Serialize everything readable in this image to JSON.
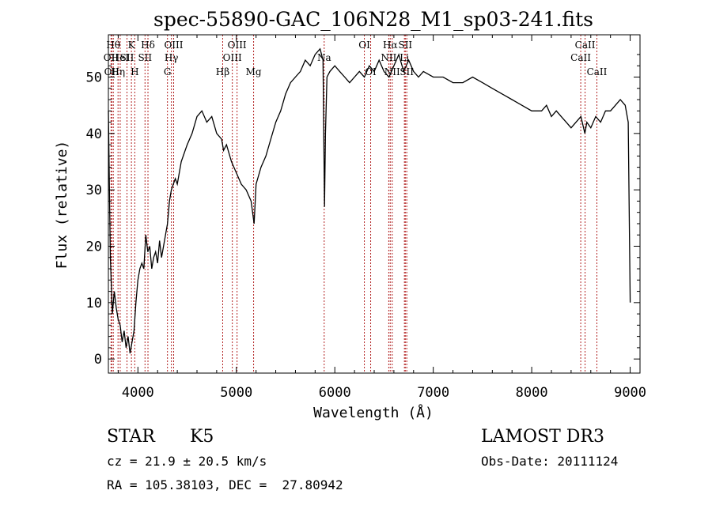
{
  "chart_data": {
    "type": "line",
    "title": "spec-55890-GAC_106N28_M1_sp03-241.fits",
    "xlabel": "Wavelength (Å)",
    "ylabel": "Flux (relative)",
    "xlim": [
      3700,
      9100
    ],
    "ylim": [
      -2.5,
      57.5
    ],
    "xticks": [
      4000,
      5000,
      6000,
      7000,
      8000,
      9000
    ],
    "yticks": [
      0,
      10,
      20,
      30,
      40,
      50
    ],
    "series": [
      {
        "name": "spectrum",
        "x": [
          3700,
          3720,
          3740,
          3760,
          3780,
          3800,
          3820,
          3840,
          3860,
          3880,
          3900,
          3920,
          3940,
          3960,
          3980,
          4000,
          4020,
          4040,
          4060,
          4080,
          4100,
          4120,
          4140,
          4160,
          4180,
          4200,
          4220,
          4240,
          4260,
          4280,
          4300,
          4320,
          4340,
          4360,
          4380,
          4400,
          4420,
          4440,
          4460,
          4480,
          4500,
          4550,
          4600,
          4650,
          4700,
          4750,
          4800,
          4850,
          4870,
          4900,
          4950,
          5000,
          5050,
          5100,
          5150,
          5180,
          5200,
          5250,
          5300,
          5350,
          5400,
          5450,
          5500,
          5550,
          5600,
          5650,
          5700,
          5750,
          5800,
          5850,
          5880,
          5895,
          5905,
          5920,
          5950,
          6000,
          6050,
          6100,
          6150,
          6200,
          6250,
          6300,
          6350,
          6400,
          6450,
          6500,
          6550,
          6600,
          6650,
          6700,
          6750,
          6800,
          6850,
          6900,
          7000,
          7100,
          7200,
          7300,
          7400,
          7500,
          7600,
          7700,
          7800,
          7900,
          8000,
          8100,
          8150,
          8200,
          8250,
          8300,
          8350,
          8400,
          8450,
          8500,
          8540,
          8560,
          8600,
          8650,
          8700,
          8750,
          8800,
          8850,
          8900,
          8950,
          8980,
          9000
        ],
        "y": [
          44,
          18,
          8,
          12,
          9,
          7,
          6,
          3,
          5,
          2,
          4,
          1,
          3,
          5,
          10,
          14,
          16,
          17,
          16,
          22,
          19,
          20,
          16,
          18,
          19,
          17,
          21,
          18,
          20,
          22,
          24,
          28,
          30,
          31,
          32,
          31,
          33,
          35,
          36,
          37,
          38,
          40,
          43,
          44,
          42,
          43,
          40,
          39,
          37,
          38,
          35,
          33,
          31,
          30,
          28,
          24,
          31,
          34,
          36,
          39,
          42,
          44,
          47,
          49,
          50,
          51,
          53,
          52,
          54,
          55,
          53,
          27,
          40,
          50,
          51,
          52,
          51,
          50,
          49,
          50,
          51,
          50,
          52,
          51,
          53,
          51,
          50,
          52,
          54,
          51,
          53,
          51,
          50,
          51,
          50,
          50,
          49,
          49,
          50,
          49,
          48,
          47,
          46,
          45,
          44,
          44,
          45,
          43,
          44,
          43,
          42,
          41,
          42,
          43,
          40,
          42,
          41,
          43,
          42,
          44,
          44,
          45,
          46,
          45,
          42,
          10
        ]
      }
    ],
    "lines": [
      {
        "wl": 3727,
        "label": "OII",
        "row": 2
      },
      {
        "wl": 3734,
        "label": "OII",
        "row": 3
      },
      {
        "wl": 3750,
        "label": "Hθ",
        "row": 1
      },
      {
        "wl": 3798,
        "label": "Hη",
        "row": 3
      },
      {
        "wl": 3820,
        "label": "HeI",
        "row": 2
      },
      {
        "wl": 3889,
        "label": "SII",
        "row": 2
      },
      {
        "wl": 3934,
        "label": "K",
        "row": 1
      },
      {
        "wl": 3968,
        "label": "H",
        "row": 3
      },
      {
        "wl": 4102,
        "label": "Hδ",
        "row": 1
      },
      {
        "wl": 4072,
        "label": "SII",
        "row": 2
      },
      {
        "wl": 4300,
        "label": "G",
        "row": 3
      },
      {
        "wl": 4340,
        "label": "Hγ",
        "row": 2
      },
      {
        "wl": 4363,
        "label": "OIII",
        "row": 1
      },
      {
        "wl": 4861,
        "label": "Hβ",
        "row": 3
      },
      {
        "wl": 4959,
        "label": "OIII",
        "row": 2
      },
      {
        "wl": 5007,
        "label": "OIII",
        "row": 1
      },
      {
        "wl": 5175,
        "label": "Mg",
        "row": 3
      },
      {
        "wl": 5892,
        "label": "Na",
        "row": 2
      },
      {
        "wl": 6300,
        "label": "OI",
        "row": 1
      },
      {
        "wl": 6364,
        "label": "OI",
        "row": 3
      },
      {
        "wl": 6548,
        "label": "NII",
        "row": 2
      },
      {
        "wl": 6563,
        "label": "Hα",
        "row": 1
      },
      {
        "wl": 6583,
        "label": "NII",
        "row": 3
      },
      {
        "wl": 6707,
        "label": "Li",
        "row": 2
      },
      {
        "wl": 6716,
        "label": "SII",
        "row": 1
      },
      {
        "wl": 6731,
        "label": "SII",
        "row": 3
      },
      {
        "wl": 8498,
        "label": "CaII",
        "row": 2
      },
      {
        "wl": 8542,
        "label": "CaII",
        "row": 1
      },
      {
        "wl": 8662,
        "label": "CaII",
        "row": 3
      }
    ]
  },
  "info": {
    "object_class": "STAR",
    "subclass": "K5",
    "survey": "LAMOST DR3",
    "cz": "cz = 21.9 ± 20.5 km/s",
    "obs_date": "Obs-Date: 20111124",
    "coords": "RA = 105.38103, DEC =  27.80942"
  },
  "colors": {
    "line_marker": "#b22222",
    "spectrum": "#000000",
    "axes": "#000000",
    "background": "#ffffff"
  }
}
